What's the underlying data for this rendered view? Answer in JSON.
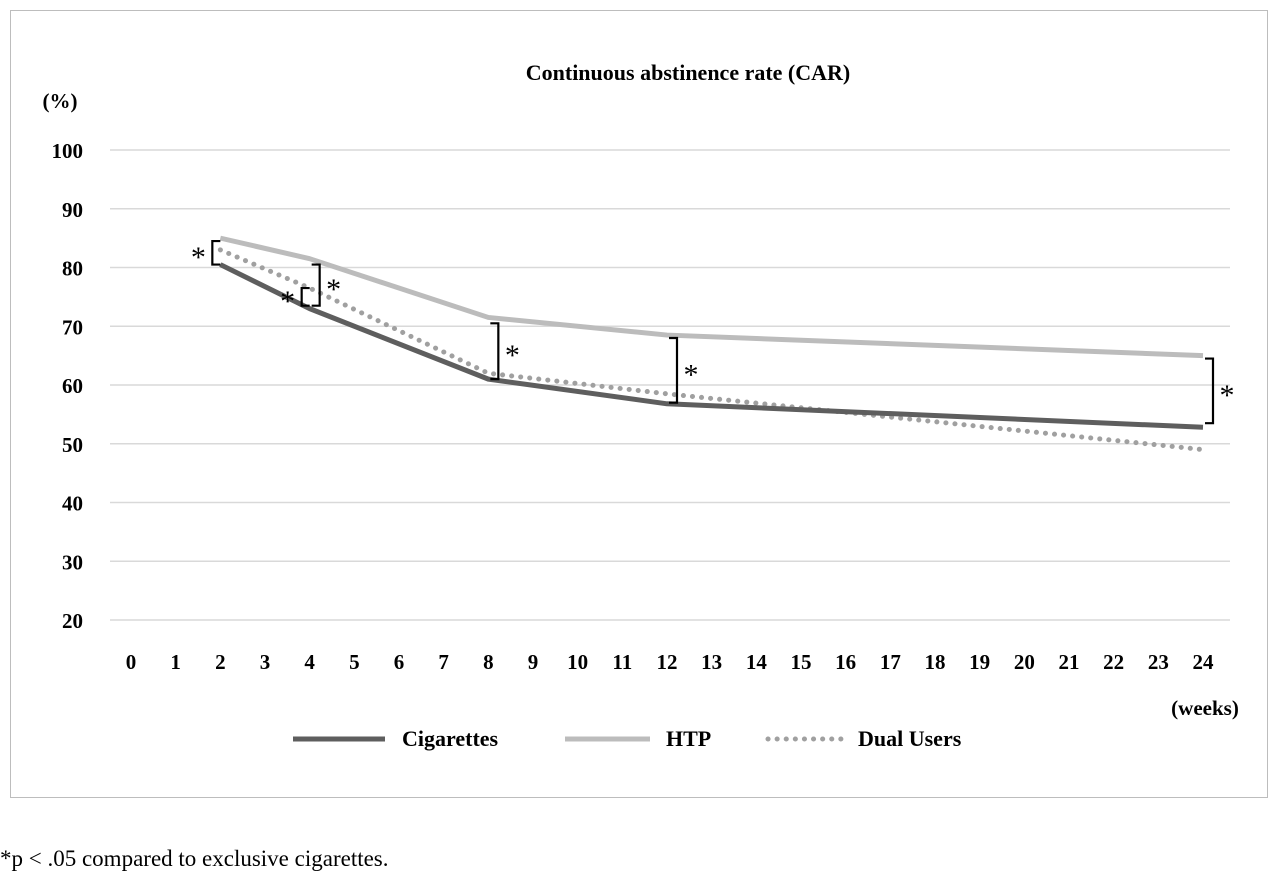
{
  "chart_data": {
    "type": "line",
    "title": "Continuous abstinence rate (CAR)",
    "ylabel": "(%)",
    "xlabel": "(weeks)",
    "ylim": [
      20,
      100
    ],
    "yticks": [
      "100",
      "90",
      "80",
      "70",
      "60",
      "50",
      "40",
      "30",
      "20"
    ],
    "ytick_values": [
      100,
      90,
      80,
      70,
      60,
      50,
      40,
      30,
      20
    ],
    "xticks": [
      "0",
      "1",
      "2",
      "3",
      "4",
      "5",
      "6",
      "7",
      "8",
      "9",
      "10",
      "11",
      "12",
      "13",
      "14",
      "15",
      "16",
      "17",
      "18",
      "19",
      "20",
      "21",
      "22",
      "23",
      "24"
    ],
    "grid": true,
    "legend": "bottom",
    "series": [
      {
        "name": "Cigarettes",
        "color": "#5e5e5e",
        "style": "solid",
        "x": [
          2,
          4,
          8,
          12,
          24
        ],
        "values": [
          80.5,
          73,
          61,
          56.8,
          52.8
        ]
      },
      {
        "name": "HTP",
        "color": "#bcbcbc",
        "style": "solid",
        "x": [
          2,
          4,
          8,
          12,
          24
        ],
        "values": [
          85,
          81.5,
          71.5,
          68.5,
          65
        ]
      },
      {
        "name": "Dual Users",
        "color": "#a0a0a0",
        "style": "dotted",
        "x": [
          2,
          4,
          8,
          12,
          24
        ],
        "values": [
          83,
          76.5,
          62,
          58.5,
          49
        ]
      }
    ],
    "annotations": [
      {
        "text": "*",
        "x": 2,
        "y_top": 84.5,
        "y_bottom": 80.5,
        "side": "left"
      },
      {
        "text": "*",
        "x": 4,
        "y_top": 80.5,
        "y_bottom": 73.5,
        "side": "right"
      },
      {
        "text": "*",
        "x": 4,
        "y_top": 76.5,
        "y_bottom": 73.5,
        "side": "left"
      },
      {
        "text": "*",
        "x": 8,
        "y_top": 70.5,
        "y_bottom": 61,
        "side": "right"
      },
      {
        "text": "*",
        "x": 12,
        "y_top": 68,
        "y_bottom": 57,
        "side": "right"
      },
      {
        "text": "*",
        "x": 24,
        "y_top": 64.5,
        "y_bottom": 53.5,
        "side": "right"
      }
    ]
  },
  "footnote": "*p < .05 compared to exclusive cigarettes."
}
